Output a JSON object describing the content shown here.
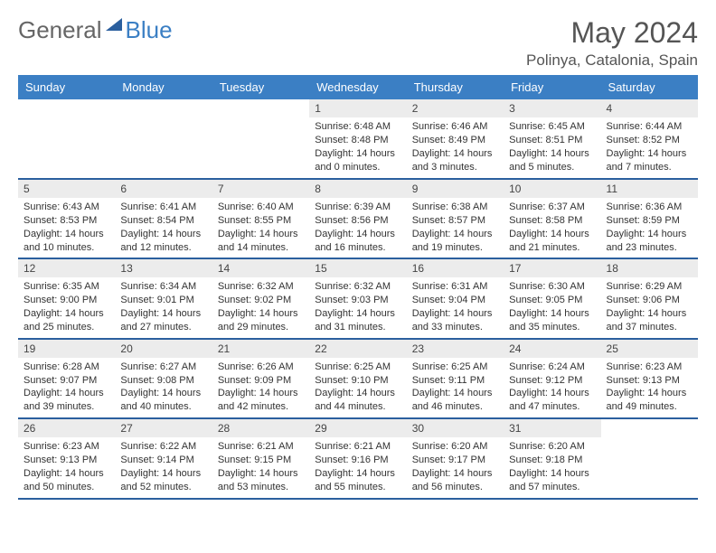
{
  "brand": {
    "part1": "General",
    "part2": "Blue"
  },
  "title": "May 2024",
  "location": "Polinya, Catalonia, Spain",
  "colors": {
    "header_bg": "#3b7fc4",
    "header_text": "#ffffff",
    "border": "#2b5f9e",
    "daynum_bg": "#ececec",
    "text": "#333333",
    "title_color": "#555555"
  },
  "weekdays": [
    "Sunday",
    "Monday",
    "Tuesday",
    "Wednesday",
    "Thursday",
    "Friday",
    "Saturday"
  ],
  "month": {
    "year": 2024,
    "name": "May",
    "first_weekday_index": 3,
    "days": [
      {
        "n": 1,
        "sunrise": "6:48 AM",
        "sunset": "8:48 PM",
        "dh": 14,
        "dm": 0
      },
      {
        "n": 2,
        "sunrise": "6:46 AM",
        "sunset": "8:49 PM",
        "dh": 14,
        "dm": 3
      },
      {
        "n": 3,
        "sunrise": "6:45 AM",
        "sunset": "8:51 PM",
        "dh": 14,
        "dm": 5
      },
      {
        "n": 4,
        "sunrise": "6:44 AM",
        "sunset": "8:52 PM",
        "dh": 14,
        "dm": 7
      },
      {
        "n": 5,
        "sunrise": "6:43 AM",
        "sunset": "8:53 PM",
        "dh": 14,
        "dm": 10
      },
      {
        "n": 6,
        "sunrise": "6:41 AM",
        "sunset": "8:54 PM",
        "dh": 14,
        "dm": 12
      },
      {
        "n": 7,
        "sunrise": "6:40 AM",
        "sunset": "8:55 PM",
        "dh": 14,
        "dm": 14
      },
      {
        "n": 8,
        "sunrise": "6:39 AM",
        "sunset": "8:56 PM",
        "dh": 14,
        "dm": 16
      },
      {
        "n": 9,
        "sunrise": "6:38 AM",
        "sunset": "8:57 PM",
        "dh": 14,
        "dm": 19
      },
      {
        "n": 10,
        "sunrise": "6:37 AM",
        "sunset": "8:58 PM",
        "dh": 14,
        "dm": 21
      },
      {
        "n": 11,
        "sunrise": "6:36 AM",
        "sunset": "8:59 PM",
        "dh": 14,
        "dm": 23
      },
      {
        "n": 12,
        "sunrise": "6:35 AM",
        "sunset": "9:00 PM",
        "dh": 14,
        "dm": 25
      },
      {
        "n": 13,
        "sunrise": "6:34 AM",
        "sunset": "9:01 PM",
        "dh": 14,
        "dm": 27
      },
      {
        "n": 14,
        "sunrise": "6:32 AM",
        "sunset": "9:02 PM",
        "dh": 14,
        "dm": 29
      },
      {
        "n": 15,
        "sunrise": "6:32 AM",
        "sunset": "9:03 PM",
        "dh": 14,
        "dm": 31
      },
      {
        "n": 16,
        "sunrise": "6:31 AM",
        "sunset": "9:04 PM",
        "dh": 14,
        "dm": 33
      },
      {
        "n": 17,
        "sunrise": "6:30 AM",
        "sunset": "9:05 PM",
        "dh": 14,
        "dm": 35
      },
      {
        "n": 18,
        "sunrise": "6:29 AM",
        "sunset": "9:06 PM",
        "dh": 14,
        "dm": 37
      },
      {
        "n": 19,
        "sunrise": "6:28 AM",
        "sunset": "9:07 PM",
        "dh": 14,
        "dm": 39
      },
      {
        "n": 20,
        "sunrise": "6:27 AM",
        "sunset": "9:08 PM",
        "dh": 14,
        "dm": 40
      },
      {
        "n": 21,
        "sunrise": "6:26 AM",
        "sunset": "9:09 PM",
        "dh": 14,
        "dm": 42
      },
      {
        "n": 22,
        "sunrise": "6:25 AM",
        "sunset": "9:10 PM",
        "dh": 14,
        "dm": 44
      },
      {
        "n": 23,
        "sunrise": "6:25 AM",
        "sunset": "9:11 PM",
        "dh": 14,
        "dm": 46
      },
      {
        "n": 24,
        "sunrise": "6:24 AM",
        "sunset": "9:12 PM",
        "dh": 14,
        "dm": 47
      },
      {
        "n": 25,
        "sunrise": "6:23 AM",
        "sunset": "9:13 PM",
        "dh": 14,
        "dm": 49
      },
      {
        "n": 26,
        "sunrise": "6:23 AM",
        "sunset": "9:13 PM",
        "dh": 14,
        "dm": 50
      },
      {
        "n": 27,
        "sunrise": "6:22 AM",
        "sunset": "9:14 PM",
        "dh": 14,
        "dm": 52
      },
      {
        "n": 28,
        "sunrise": "6:21 AM",
        "sunset": "9:15 PM",
        "dh": 14,
        "dm": 53
      },
      {
        "n": 29,
        "sunrise": "6:21 AM",
        "sunset": "9:16 PM",
        "dh": 14,
        "dm": 55
      },
      {
        "n": 30,
        "sunrise": "6:20 AM",
        "sunset": "9:17 PM",
        "dh": 14,
        "dm": 56
      },
      {
        "n": 31,
        "sunrise": "6:20 AM",
        "sunset": "9:18 PM",
        "dh": 14,
        "dm": 57
      }
    ]
  },
  "labels": {
    "sunrise": "Sunrise:",
    "sunset": "Sunset:",
    "daylight_prefix": "Daylight:",
    "hours_word": "hours",
    "and_word": "and",
    "minutes_word": "minutes."
  }
}
